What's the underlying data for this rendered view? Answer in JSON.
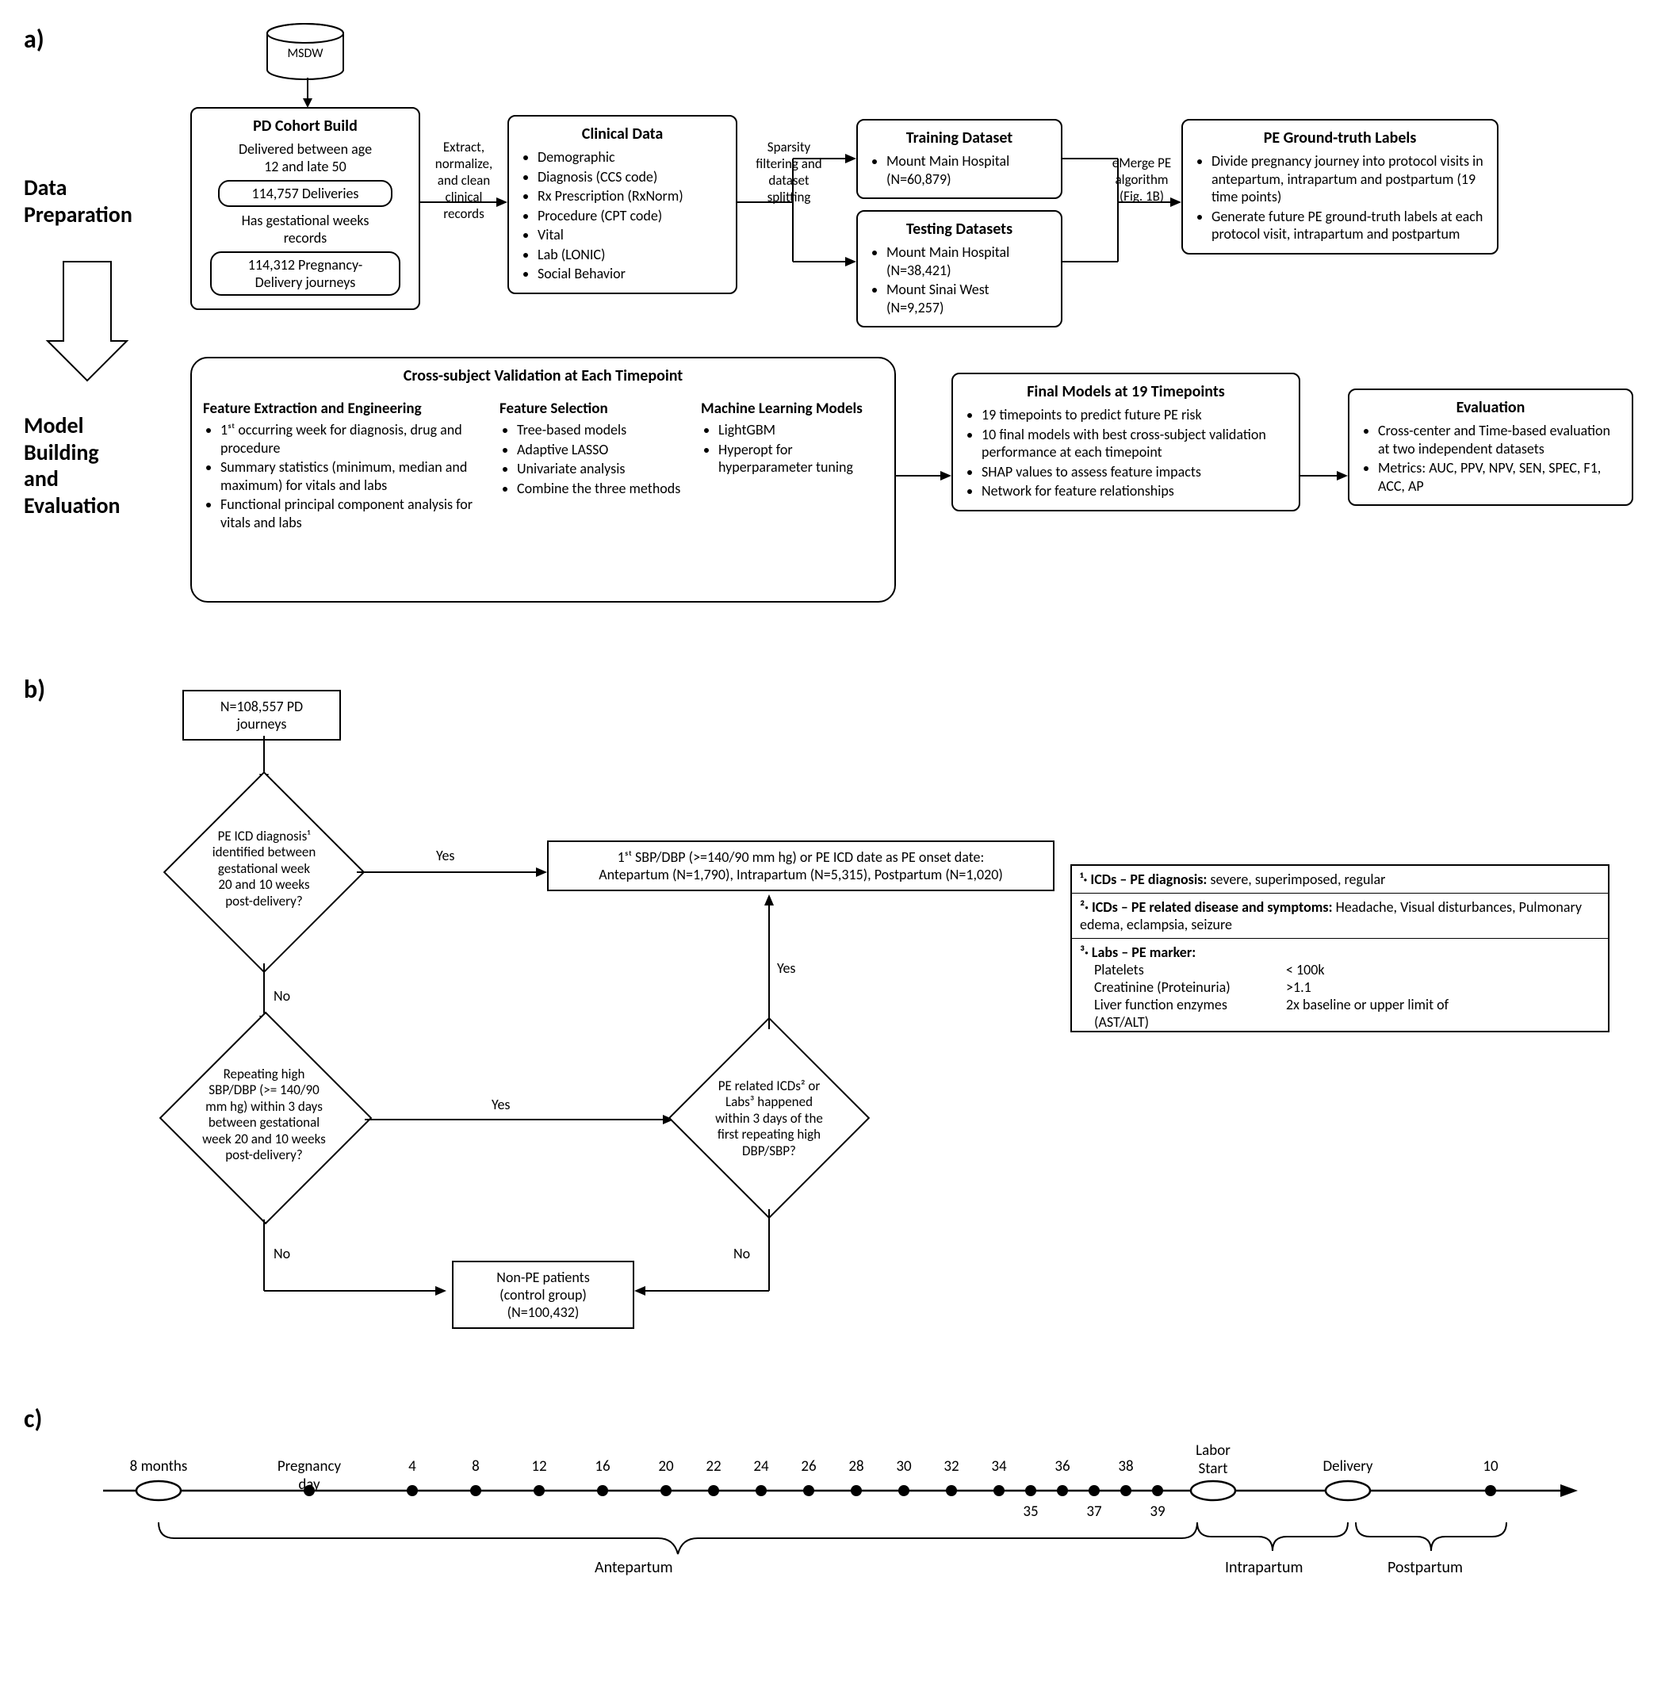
{
  "panelA": {
    "label": "a)",
    "msdw": "MSDW",
    "dataPrep": "Data\nPreparation",
    "modelBuild": "Model\nBuilding\nand\nEvaluation",
    "pdCohort": {
      "title": "PD Cohort Build",
      "line1": "Delivered between age\n12 and late 50",
      "pill1": "114,757 Deliveries",
      "line2": "Has gestational weeks\nrecords",
      "pill2": "114,312 Pregnancy-\nDelivery journeys"
    },
    "arrow1": "Extract,\nnormalize,\nand clean\nclinical\nrecords",
    "clinicalData": {
      "title": "Clinical Data",
      "items": [
        "Demographic",
        "Diagnosis (CCS code)",
        "Rx Prescription (RxNorm)",
        "Procedure (CPT code)",
        "Vital",
        "Lab (LONIC)",
        "Social Behavior"
      ]
    },
    "arrow2": "Sparsity\nfiltering and\ndataset\nsplitting",
    "trainingDataset": {
      "title": "Training Dataset",
      "items": [
        "Mount Main Hospital\n(N=60,879)"
      ]
    },
    "testingDatasets": {
      "title": "Testing Datasets",
      "items": [
        "Mount Main Hospital\n(N=38,421)",
        "Mount Sinai West\n(N=9,257)"
      ]
    },
    "arrow3": "eMerge PE\nalgorithm\n(Fig. 1B)",
    "groundTruth": {
      "title": "PE Ground-truth Labels",
      "items": [
        "Divide pregnancy journey into protocol visits in antepartum, intrapartum and postpartum (19 time points)",
        "Generate future PE ground-truth labels at each protocol visit, intrapartum and postpartum"
      ]
    },
    "crossSubject": {
      "title": "Cross-subject Validation at Each Timepoint",
      "featureExtraction": {
        "title": "Feature Extraction and Engineering",
        "items": [
          "1ˢᵗ occurring week for diagnosis, drug and procedure",
          "Summary statistics (minimum, median and maximum) for vitals and labs",
          "Functional principal component analysis for vitals and labs"
        ]
      },
      "featureSelection": {
        "title": "Feature Selection",
        "items": [
          "Tree-based models",
          "Adaptive LASSO",
          "Univariate analysis",
          "Combine the three methods"
        ]
      },
      "mlModels": {
        "title": "Machine Learning Models",
        "items": [
          "LightGBM",
          "Hyperopt for hyperparameter tuning"
        ]
      }
    },
    "finalModels": {
      "title": "Final Models at 19 Timepoints",
      "items": [
        "19 timepoints to predict future PE risk",
        "10 final models with best cross-subject validation performance at each timepoint",
        "SHAP values to assess feature impacts",
        "Network for feature relationships"
      ]
    },
    "evaluation": {
      "title": "Evaluation",
      "items": [
        "Cross-center and Time-based evaluation at two independent datasets",
        "Metrics: AUC, PPV, NPV, SEN, SPEC, F1, ACC, AP"
      ]
    }
  },
  "panelB": {
    "label": "b)",
    "start": "N=108,557 PD\njourneys",
    "d1": "PE ICD diagnosis¹\nidentified between\ngestational week\n20 and 10 weeks\npost-delivery?",
    "onset": "1ˢᵗ SBP/DBP (>=140/90 mm hg) or PE ICD date as PE onset date:\nAntepartum (N=1,790), Intrapartum (N=5,315), Postpartum (N=1,020)",
    "d2": "Repeating high\nSBP/DBP (>= 140/90\nmm hg) within 3 days\nbetween gestational\nweek 20 and 10 weeks\npost-delivery?",
    "d3": "PE related ICDs² or\nLabs³ happened\nwithin 3 days of the\nfirst repeating high\nDBP/SBP?",
    "nonPE": "Non-PE patients\n(control group)\n(N=100,432)",
    "yes": "Yes",
    "no": "No",
    "legend": {
      "r1": "¹· ICDs – PE diagnosis:",
      "r1b": "  severe, superimposed, regular",
      "r2": "²· ICDs – PE related disease and symptoms:",
      "r2b": " Headache, Visual disturbances, Pulmonary edema, eclampsia, seizure",
      "r3": "³· Labs – PE marker:",
      "labs": [
        {
          "name": "Platelets",
          "val": "< 100k"
        },
        {
          "name": "Creatinine (Proteinuria)",
          "val": ">1.1"
        },
        {
          "name": "Liver function enzymes\n(AST/ALT)",
          "val": "2x baseline or upper limit of"
        }
      ]
    }
  },
  "panelC": {
    "label": "c)",
    "points": [
      {
        "label": "8 months",
        "type": "oval"
      },
      {
        "label": "Pregnancy day",
        "type": "dot"
      },
      {
        "label": "4",
        "type": "dot"
      },
      {
        "label": "8",
        "type": "dot"
      },
      {
        "label": "12",
        "type": "dot"
      },
      {
        "label": "16",
        "type": "dot"
      },
      {
        "label": "20",
        "type": "dot"
      },
      {
        "label": "22",
        "type": "dot"
      },
      {
        "label": "24",
        "type": "dot"
      },
      {
        "label": "26",
        "type": "dot"
      },
      {
        "label": "28",
        "type": "dot"
      },
      {
        "label": "30",
        "type": "dot"
      },
      {
        "label": "32",
        "type": "dot"
      },
      {
        "label": "34",
        "type": "dot"
      },
      {
        "label": "35",
        "type": "dotbelow"
      },
      {
        "label": "36",
        "type": "dot"
      },
      {
        "label": "37",
        "type": "dotbelow"
      },
      {
        "label": "38",
        "type": "dot"
      },
      {
        "label": "39",
        "type": "dotbelow"
      },
      {
        "label": "Labor\nStart",
        "type": "oval"
      },
      {
        "label": "Delivery",
        "type": "oval"
      },
      {
        "label": "10",
        "type": "dot"
      }
    ],
    "braces": {
      "ante": "Antepartum",
      "intra": "Intrapartum",
      "post": "Postpartum"
    }
  },
  "style": {
    "bg": "#ffffff",
    "stroke": "#000000",
    "fontMain": 18,
    "fontTitle": 20,
    "fontLabel": 28
  }
}
